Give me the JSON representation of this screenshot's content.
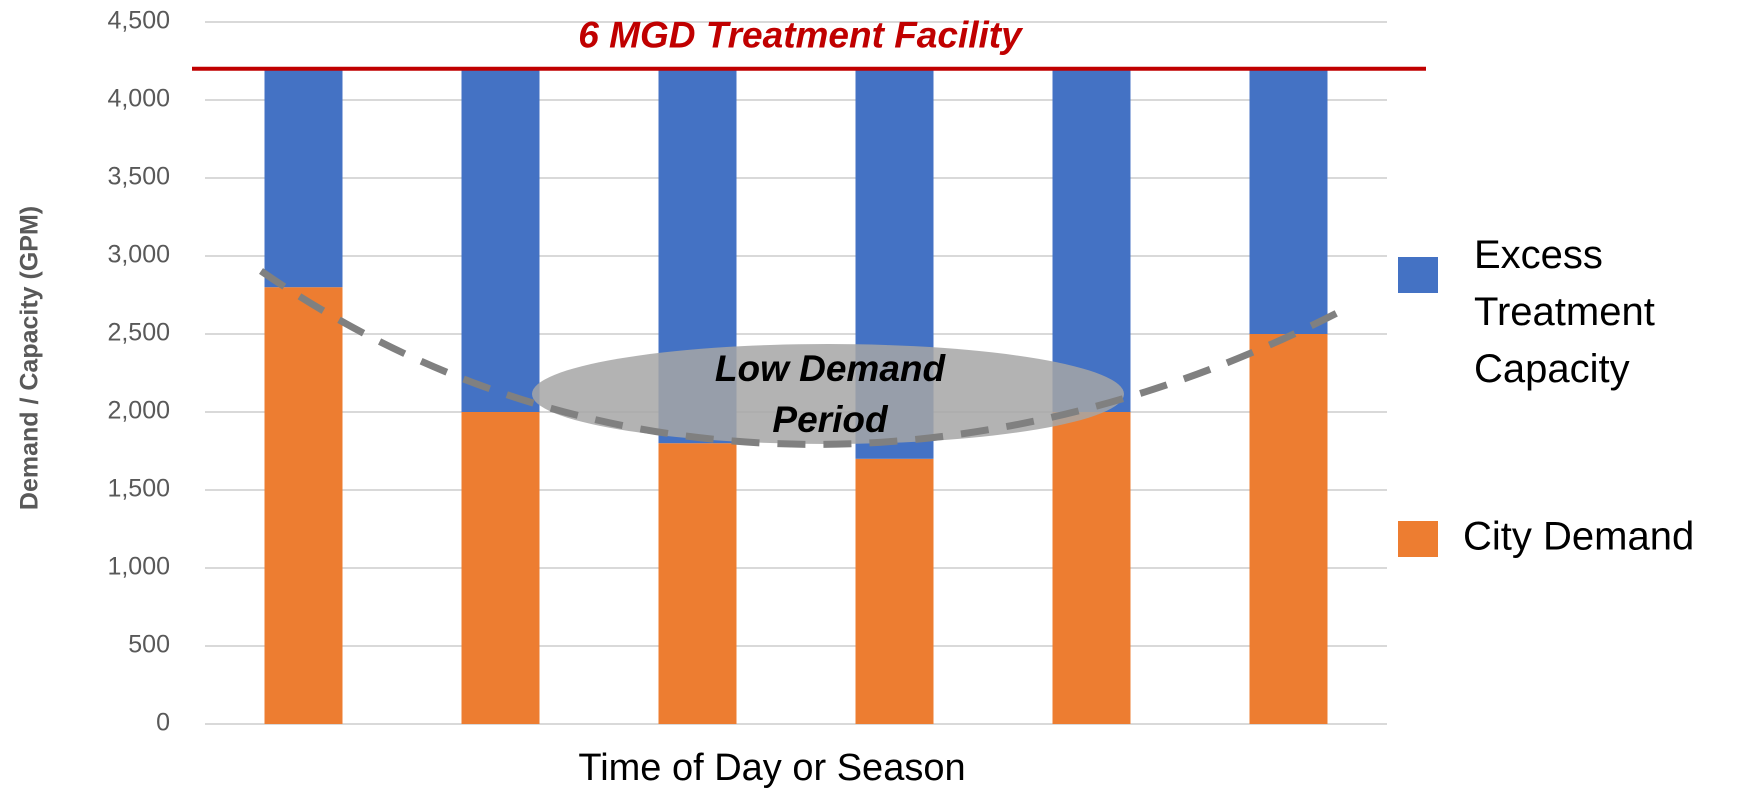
{
  "chart_data": {
    "type": "bar",
    "stacked": true,
    "categories": [
      null,
      null,
      null,
      null,
      null,
      null
    ],
    "series": [
      {
        "name": "Excess Treatment Capacity",
        "color": "#4472c4",
        "values": [
          1400,
          2200,
          2400,
          2500,
          2200,
          1700
        ]
      },
      {
        "name": "City Demand",
        "color": "#ed7d31",
        "values": [
          2800,
          2000,
          1800,
          1700,
          2000,
          2500
        ]
      }
    ],
    "ylim": [
      0,
      4500
    ],
    "yticks": [
      0,
      500,
      {
        "value": 1000,
        "label": "1,000"
      },
      {
        "value": 1500,
        "label": "1,500"
      },
      {
        "value": 2000,
        "label": "2,000"
      },
      {
        "value": 2500,
        "label": "2,500"
      },
      {
        "value": 3000,
        "label": "3,000"
      },
      {
        "value": 3500,
        "label": "3,500"
      },
      {
        "value": 4000,
        "label": "4,000"
      },
      {
        "value": 4500,
        "label": "4,500"
      }
    ],
    "grid": true,
    "ylabel": "Demand /  Capacity (GPM)",
    "xlabel": "Time of Day or Season",
    "reference_line": {
      "value": 4200,
      "label": "6 MGD Treatment Facility",
      "color": "#c00000"
    },
    "annotation": [
      "Low Demand",
      "Period"
    ],
    "legend": "right"
  }
}
